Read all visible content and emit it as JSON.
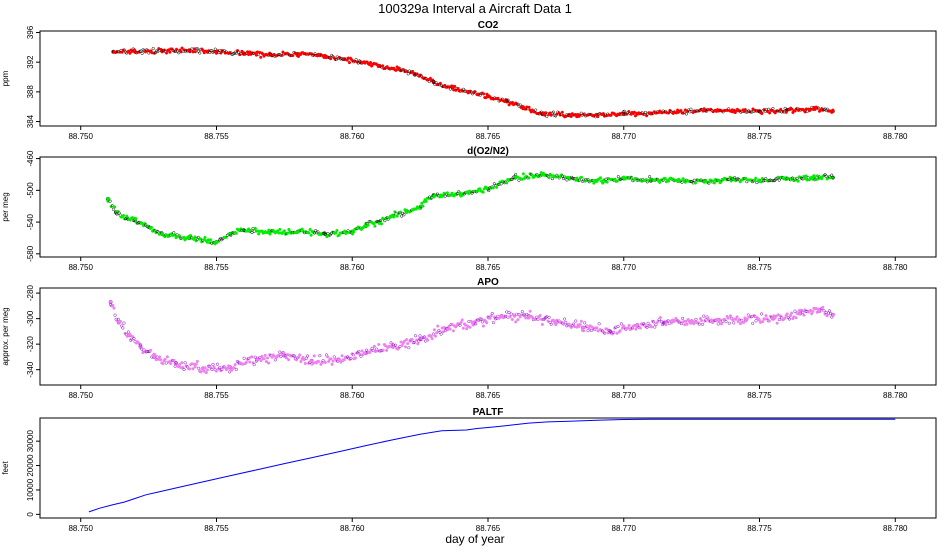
{
  "figure": {
    "title": "100329a   Interval a Aircraft Data 1",
    "xlabel": "day of year"
  },
  "chart_data": [
    {
      "type": "scatter",
      "title": "CO2",
      "ylabel": "ppm",
      "xlim": [
        88.7485,
        88.7815
      ],
      "ylim": [
        383.4,
        396.2
      ],
      "xticks": [
        "88.750",
        "88.755",
        "88.760",
        "88.765",
        "88.770",
        "88.775",
        "88.780"
      ],
      "yticks": [
        "384",
        "388",
        "392",
        "396"
      ],
      "fill_color": "#ff0000",
      "edge_color": "#000000",
      "series": [
        {
          "x": [
            88.7512,
            88.752,
            88.753,
            88.754,
            88.755,
            88.756,
            88.757,
            88.758,
            88.759,
            88.7597,
            88.7603,
            88.761,
            88.7617,
            88.7623,
            88.763,
            88.7637,
            88.7643,
            88.765,
            88.7657,
            88.7663,
            88.767,
            88.768,
            88.769,
            88.77,
            88.771,
            88.772,
            88.773,
            88.774,
            88.775,
            88.776,
            88.777,
            88.7777
          ],
          "y": [
            393.4,
            393.4,
            393.5,
            393.6,
            393.4,
            393.2,
            393.0,
            393.1,
            392.8,
            392.4,
            392.0,
            391.5,
            391.1,
            390.4,
            389.3,
            388.6,
            388.0,
            387.4,
            386.7,
            385.8,
            385.0,
            384.9,
            384.9,
            385.0,
            385.1,
            385.3,
            385.5,
            385.5,
            385.4,
            385.5,
            385.7,
            385.4
          ]
        }
      ]
    },
    {
      "type": "scatter",
      "title": "d(O2/N2)",
      "ylabel": "per meg",
      "xlim": [
        88.7485,
        88.7815
      ],
      "ylim": [
        -584,
        -458
      ],
      "xticks": [
        "88.750",
        "88.755",
        "88.760",
        "88.765",
        "88.770",
        "88.775",
        "88.780"
      ],
      "yticks": [
        "-580",
        "-540",
        "-500",
        "-460"
      ],
      "fill_color": "#00ee00",
      "edge_color": "#000000",
      "series": [
        {
          "x": [
            88.751,
            88.7513,
            88.7517,
            88.752,
            88.7525,
            88.753,
            88.754,
            88.755,
            88.7555,
            88.756,
            88.757,
            88.758,
            88.759,
            88.76,
            88.7605,
            88.761,
            88.7615,
            88.762,
            88.7625,
            88.763,
            88.764,
            88.765,
            88.766,
            88.767,
            88.768,
            88.769,
            88.77,
            88.771,
            88.772,
            88.773,
            88.774,
            88.775,
            88.776,
            88.777,
            88.7777
          ],
          "y": [
            -511,
            -528,
            -535,
            -538,
            -546,
            -555,
            -560,
            -565,
            -555,
            -550,
            -552,
            -552,
            -555,
            -552,
            -545,
            -540,
            -532,
            -527,
            -522,
            -506,
            -505,
            -498,
            -484,
            -480,
            -485,
            -488,
            -485,
            -487,
            -488,
            -488,
            -486,
            -488,
            -485,
            -484,
            -484
          ]
        }
      ]
    },
    {
      "type": "scatter",
      "title": "APO",
      "ylabel": "approx. per meg",
      "xlim": [
        88.7485,
        88.7815
      ],
      "ylim": [
        -352,
        -276
      ],
      "xticks": [
        "88.750",
        "88.755",
        "88.760",
        "88.765",
        "88.770",
        "88.775",
        "88.780"
      ],
      "yticks": [
        "-340",
        "-320",
        "-300",
        "-280"
      ],
      "fill_color": "#ee82ee",
      "edge_color": "#9400d3",
      "series": [
        {
          "x": [
            88.7511,
            88.7514,
            88.7518,
            88.7522,
            88.7527,
            88.7535,
            88.7545,
            88.7555,
            88.7565,
            88.7575,
            88.7585,
            88.7595,
            88.7605,
            88.7615,
            88.7625,
            88.7635,
            88.7645,
            88.7655,
            88.7665,
            88.7675,
            88.7685,
            88.7695,
            88.7705,
            88.7715,
            88.7725,
            88.7735,
            88.7745,
            88.7755,
            88.7765,
            88.7772,
            88.7777
          ],
          "y": [
            -287,
            -303,
            -313,
            -322,
            -330,
            -335,
            -339,
            -338,
            -332,
            -329,
            -333,
            -332,
            -327,
            -322,
            -316,
            -308,
            -303,
            -298,
            -298,
            -303,
            -307,
            -310,
            -305,
            -303,
            -302,
            -301,
            -301,
            -300,
            -296,
            -294,
            -297
          ]
        }
      ]
    },
    {
      "type": "line",
      "title": "PALTF",
      "ylabel": "feet",
      "xlim": [
        88.7485,
        88.7815
      ],
      "ylim": [
        -1500,
        39500
      ],
      "xticks": [
        "88.750",
        "88.755",
        "88.760",
        "88.765",
        "88.770",
        "88.775",
        "88.780"
      ],
      "yticks": [
        "0",
        "10000",
        "20000",
        "30000"
      ],
      "line_color": "#0000ff",
      "series": [
        {
          "x": [
            88.7503,
            88.7507,
            88.7512,
            88.7516,
            88.752,
            88.7524,
            88.7528,
            88.7535,
            88.7545,
            88.7555,
            88.7565,
            88.7575,
            88.7585,
            88.7595,
            88.7605,
            88.7615,
            88.7625,
            88.7633,
            88.7642,
            88.7646,
            88.7652,
            88.7658,
            88.7665,
            88.7672,
            88.768,
            88.769,
            88.77,
            88.771,
            88.772,
            88.773,
            88.774,
            88.775,
            88.776,
            88.777,
            88.778,
            88.78
          ],
          "y": [
            1000,
            2500,
            4000,
            5000,
            6500,
            8000,
            9000,
            10800,
            13300,
            15800,
            18300,
            20800,
            23200,
            25700,
            28200,
            30600,
            32800,
            34300,
            34600,
            35200,
            35800,
            36500,
            37400,
            37900,
            38200,
            38600,
            38900,
            39000,
            39000,
            39000,
            39000,
            39000,
            39000,
            39000,
            39000,
            39000
          ]
        }
      ]
    }
  ]
}
